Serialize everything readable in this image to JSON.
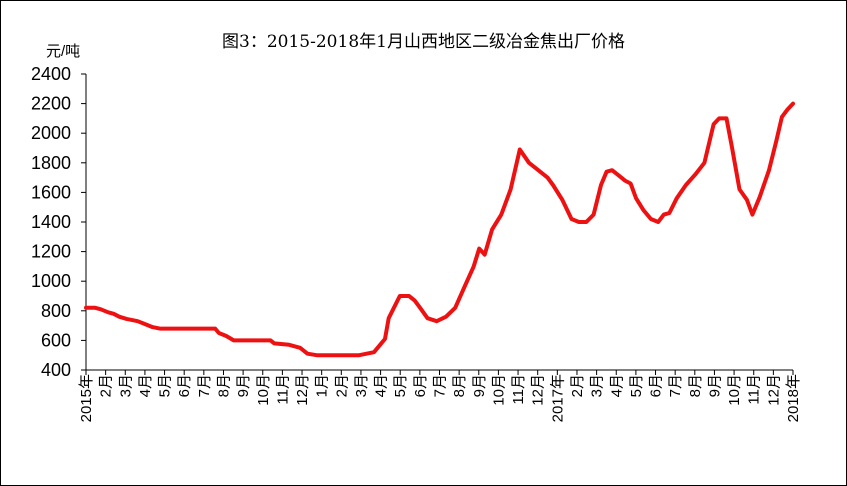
{
  "chart_data": {
    "type": "line",
    "title": "图3：2015-2018年1月山西地区二级冶金焦出厂价格",
    "ylabel": "元/吨",
    "xlabel": "",
    "ylim": [
      400,
      2400
    ],
    "yticks": [
      400,
      600,
      800,
      1000,
      1200,
      1400,
      1600,
      1800,
      2000,
      2200,
      2400
    ],
    "grid": false,
    "legend": "none",
    "line_color": "#ee1111",
    "x_labels": [
      "2015年",
      "2月",
      "3月",
      "4月",
      "5月",
      "6月",
      "7月",
      "8月",
      "9月",
      "10月",
      "11月",
      "12月",
      "1月",
      "2月",
      "3月",
      "4月",
      "5月",
      "6月",
      "7月",
      "8月",
      "9月",
      "10月",
      "11月",
      "12月",
      "2017年",
      "2月",
      "3月",
      "4月",
      "5月",
      "6月",
      "7月",
      "8月",
      "9月",
      "10月",
      "11月",
      "12月",
      "2018年"
    ],
    "series": [
      {
        "values": [
          [
            0,
            820
          ],
          [
            0.5,
            820
          ],
          [
            0.8,
            810
          ],
          [
            1.2,
            790
          ],
          [
            1.5,
            780
          ],
          [
            1.8,
            760
          ],
          [
            2.2,
            745
          ],
          [
            2.8,
            730
          ],
          [
            3.2,
            710
          ],
          [
            3.6,
            690
          ],
          [
            4.0,
            680
          ],
          [
            5.0,
            680
          ],
          [
            6.0,
            680
          ],
          [
            7.0,
            680
          ],
          [
            7.2,
            650
          ],
          [
            7.6,
            630
          ],
          [
            8.0,
            600
          ],
          [
            9.0,
            600
          ],
          [
            10.0,
            600
          ],
          [
            10.2,
            580
          ],
          [
            11.0,
            570
          ],
          [
            11.6,
            550
          ],
          [
            12.0,
            510
          ],
          [
            12.5,
            500
          ],
          [
            13.0,
            500
          ],
          [
            14.0,
            500
          ],
          [
            14.8,
            500
          ],
          [
            15.2,
            510
          ],
          [
            15.6,
            520
          ],
          [
            16.2,
            610
          ],
          [
            16.4,
            750
          ],
          [
            16.8,
            850
          ],
          [
            17.0,
            900
          ],
          [
            17.5,
            900
          ],
          [
            17.8,
            870
          ],
          [
            18.1,
            820
          ],
          [
            18.5,
            750
          ],
          [
            19.0,
            730
          ],
          [
            19.5,
            760
          ],
          [
            20.0,
            820
          ],
          [
            20.5,
            960
          ],
          [
            21.0,
            1100
          ],
          [
            21.3,
            1220
          ],
          [
            21.6,
            1180
          ],
          [
            22.0,
            1350
          ],
          [
            22.5,
            1450
          ],
          [
            23.0,
            1620
          ],
          [
            23.5,
            1890
          ],
          [
            24.0,
            1800
          ],
          [
            24.5,
            1750
          ],
          [
            25.0,
            1700
          ],
          [
            25.3,
            1650
          ],
          [
            25.8,
            1550
          ],
          [
            26.3,
            1420
          ],
          [
            26.7,
            1400
          ],
          [
            27.1,
            1400
          ],
          [
            27.5,
            1450
          ],
          [
            27.9,
            1650
          ],
          [
            28.2,
            1740
          ],
          [
            28.5,
            1750
          ],
          [
            28.8,
            1720
          ],
          [
            29.2,
            1680
          ],
          [
            29.5,
            1660
          ],
          [
            29.8,
            1560
          ],
          [
            30.2,
            1480
          ],
          [
            30.6,
            1420
          ],
          [
            31.0,
            1400
          ],
          [
            31.3,
            1450
          ],
          [
            31.6,
            1460
          ],
          [
            32.0,
            1560
          ],
          [
            32.5,
            1650
          ],
          [
            33.0,
            1720
          ],
          [
            33.5,
            1800
          ],
          [
            34.0,
            2060
          ],
          [
            34.3,
            2100
          ],
          [
            34.7,
            2100
          ],
          [
            35.0,
            1900
          ],
          [
            35.4,
            1620
          ],
          [
            35.8,
            1550
          ],
          [
            36.1,
            1450
          ],
          [
            36.5,
            1570
          ],
          [
            37.0,
            1750
          ],
          [
            37.4,
            1950
          ],
          [
            37.7,
            2110
          ],
          [
            38.0,
            2160
          ],
          [
            38.3,
            2200
          ]
        ]
      }
    ]
  }
}
